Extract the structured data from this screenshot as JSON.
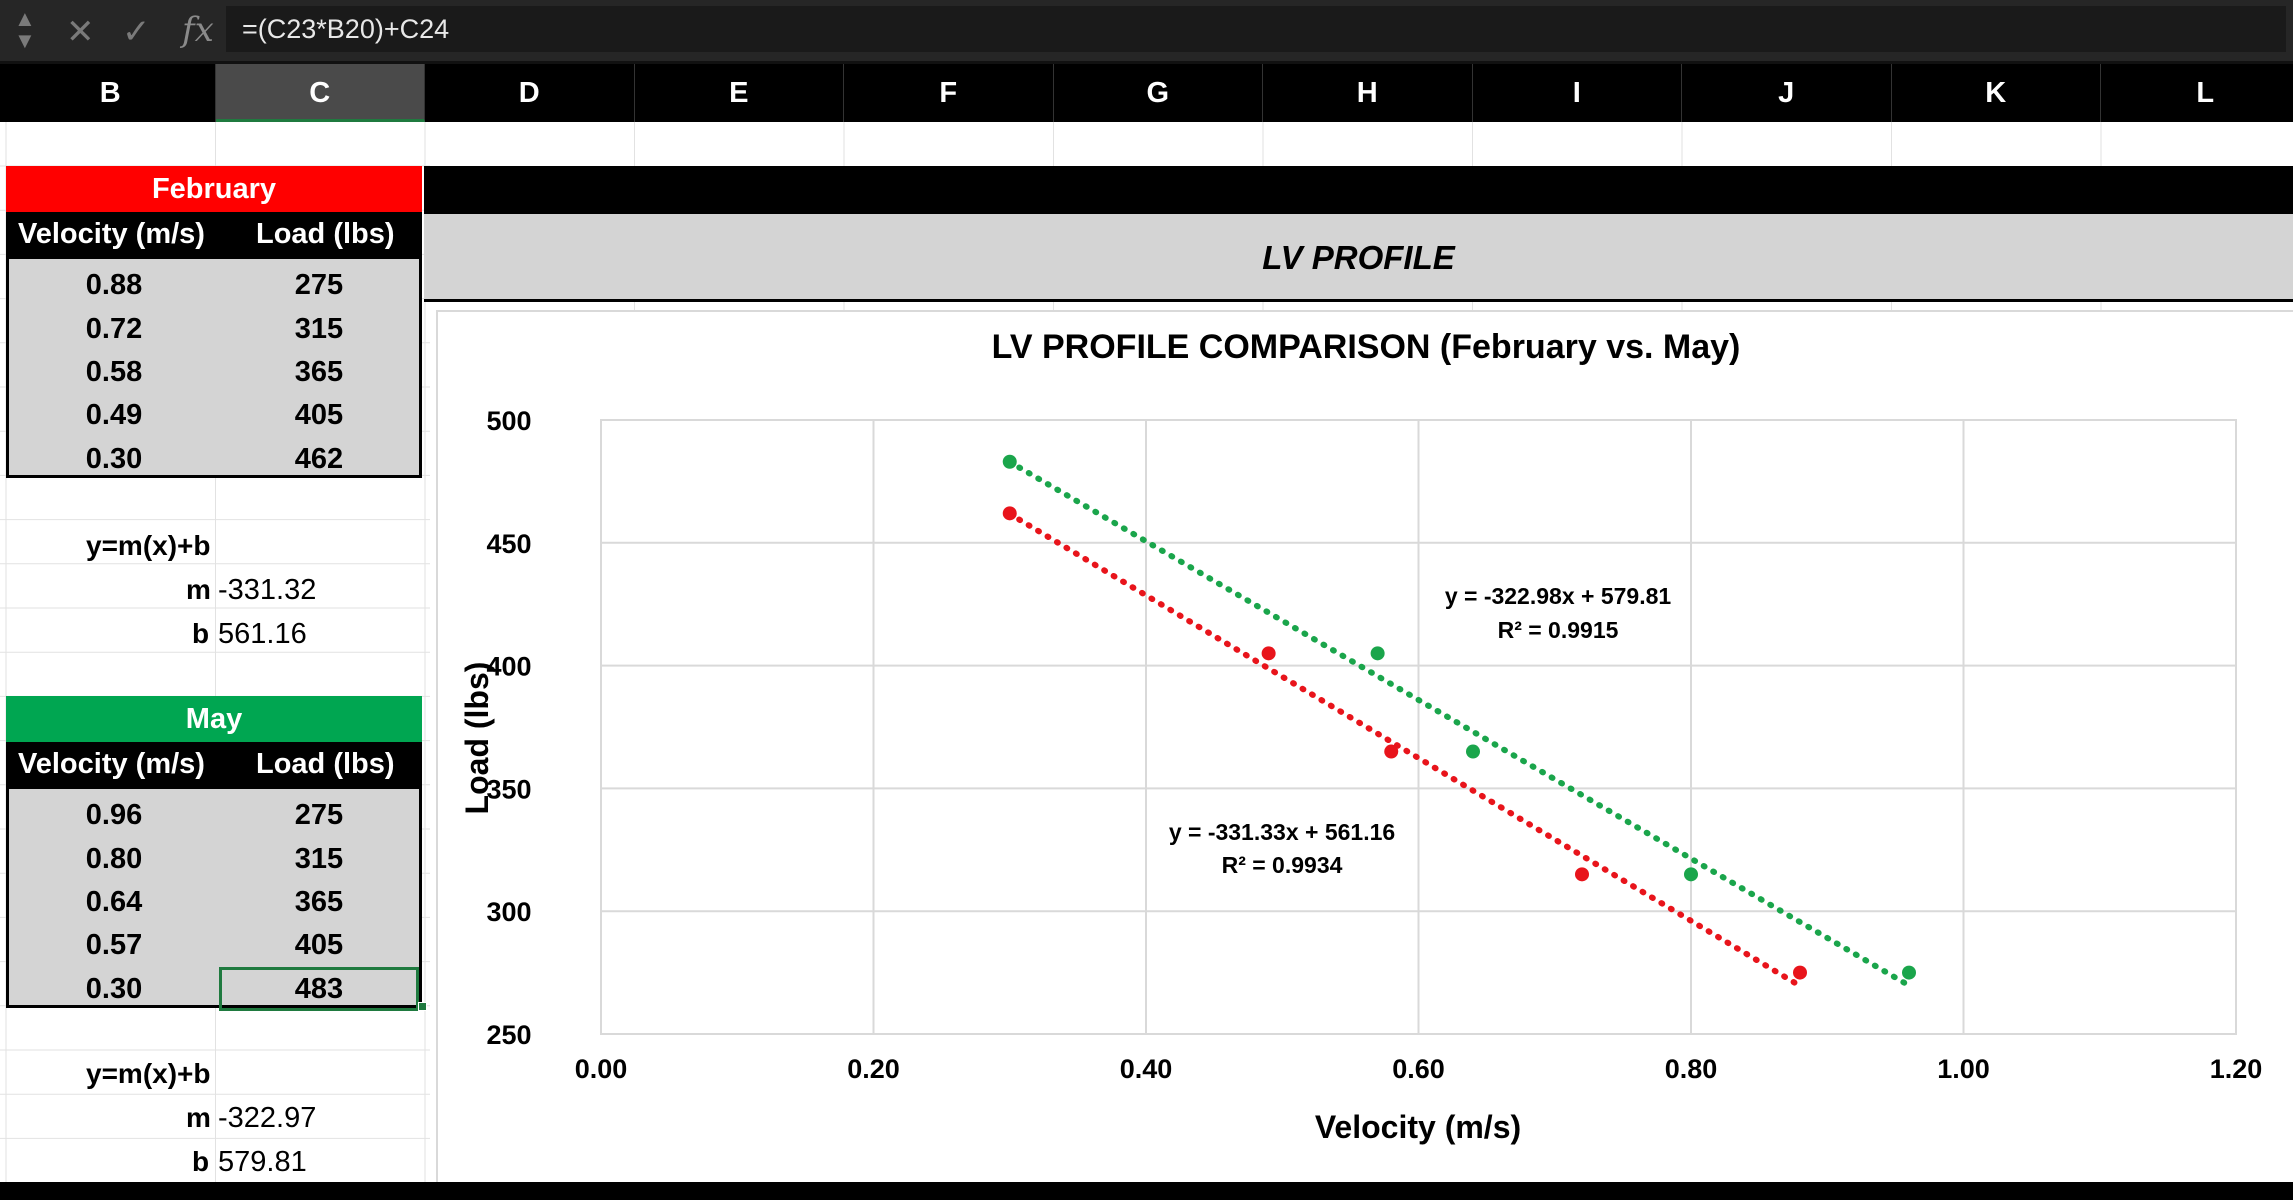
{
  "formula_bar": {
    "formula": "=(C23*B20)+C24",
    "fx_label": "fx",
    "cancel_glyph": "✕",
    "confirm_glyph": "✓"
  },
  "columns": [
    "B",
    "C",
    "D",
    "E",
    "F",
    "G",
    "H",
    "I",
    "J",
    "K",
    "L"
  ],
  "active_column": "C",
  "february": {
    "title": "February",
    "title_color": "#ff0000",
    "col1_header": "Velocity (m/s)",
    "col2_header": "Load (lbs)",
    "rows": [
      {
        "velocity": "0.88",
        "load": "275"
      },
      {
        "velocity": "0.72",
        "load": "315"
      },
      {
        "velocity": "0.58",
        "load": "365"
      },
      {
        "velocity": "0.49",
        "load": "405"
      },
      {
        "velocity": "0.30",
        "load": "462"
      }
    ],
    "eq_label": "y=m(x)+b",
    "m_label": "m",
    "m_value": "-331.32",
    "b_label": "b",
    "b_value": "561.16"
  },
  "may": {
    "title": "May",
    "title_color": "#00a651",
    "col1_header": "Velocity (m/s)",
    "col2_header": "Load (lbs)",
    "rows": [
      {
        "velocity": "0.96",
        "load": "275"
      },
      {
        "velocity": "0.80",
        "load": "315"
      },
      {
        "velocity": "0.64",
        "load": "365"
      },
      {
        "velocity": "0.57",
        "load": "405"
      },
      {
        "velocity": "0.30",
        "load": "483"
      }
    ],
    "eq_label": "y=m(x)+b",
    "m_label": "m",
    "m_value": "-322.97",
    "b_label": "b",
    "b_value": "579.81"
  },
  "banner": {
    "title": "LV PROFILE"
  },
  "chart_data": {
    "type": "scatter",
    "title": "LV PROFILE COMPARISON (February vs. May)",
    "xlabel": "Velocity (m/s)",
    "ylabel": "Load (lbs)",
    "xlim": [
      0,
      1.2
    ],
    "ylim": [
      250,
      500
    ],
    "x_ticks": [
      "0.00",
      "0.20",
      "0.40",
      "0.60",
      "0.80",
      "1.00",
      "1.20"
    ],
    "y_ticks": [
      "250",
      "300",
      "350",
      "400",
      "450",
      "500"
    ],
    "grid": true,
    "series": [
      {
        "color": "#e8141b",
        "points": [
          [
            0.88,
            275
          ],
          [
            0.72,
            315
          ],
          [
            0.58,
            365
          ],
          [
            0.49,
            405
          ],
          [
            0.3,
            462
          ]
        ],
        "trendline": {
          "slope": -331.33,
          "intercept": 561.16,
          "x_range": [
            0.3,
            0.88
          ]
        },
        "equation": "y = -331.33x + 561.16",
        "r2": "R² = 0.9934"
      },
      {
        "color": "#1aa54b",
        "points": [
          [
            0.96,
            275
          ],
          [
            0.8,
            315
          ],
          [
            0.64,
            365
          ],
          [
            0.57,
            405
          ],
          [
            0.3,
            483
          ]
        ],
        "trendline": {
          "slope": -322.98,
          "intercept": 579.81,
          "x_range": [
            0.3,
            0.96
          ]
        },
        "equation": "y = -322.98x + 579.81",
        "r2": "R² = 0.9915"
      }
    ]
  }
}
